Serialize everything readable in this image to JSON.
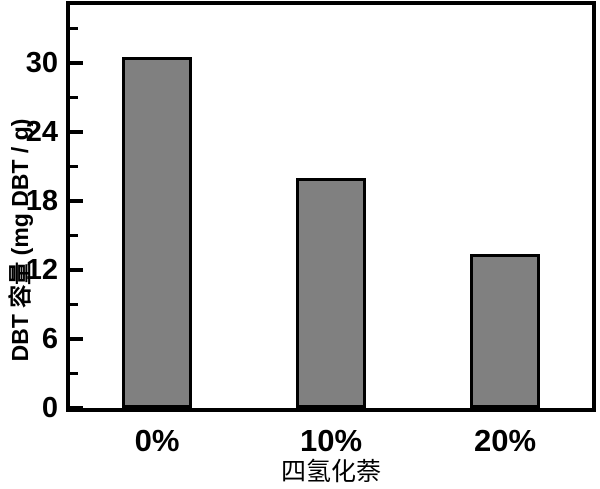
{
  "chart_data": {
    "type": "bar",
    "title": "",
    "categories": [
      "0%",
      "10%",
      "20%"
    ],
    "values": [
      30.5,
      20.0,
      13.4
    ],
    "xlabel": "四氢化萘",
    "ylabel": "DBT 容量 (mg DBT / g)",
    "ylim": [
      0,
      35
    ],
    "ytick_major": [
      0,
      6,
      12,
      18,
      24,
      30
    ],
    "ytick_minor_interval": 3,
    "grid": false,
    "legend": false,
    "bar_fill_color": "#808080",
    "bar_border_color": "#000000",
    "axis_color": "#000000",
    "background_color": "#ffffff"
  }
}
